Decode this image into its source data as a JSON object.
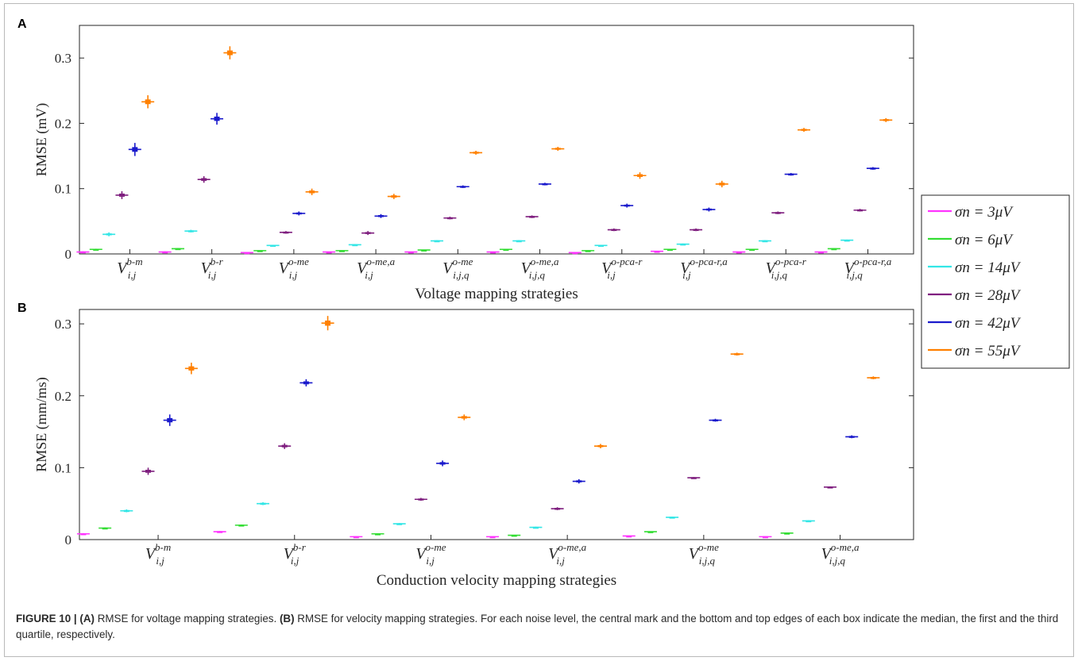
{
  "figure": {
    "caption_lead": "FIGURE 10 | ",
    "caption_a_tag": "(A)",
    "caption_a_text": " RMSE for voltage mapping strategies. ",
    "caption_b_tag": "(B)",
    "caption_b_text": " RMSE for velocity mapping strategies. For each noise level, the central mark and the bottom and top edges of each box indicate the median, the first and the third quartile, respectively."
  },
  "legend": {
    "entries": [
      {
        "label": "σn = 3μV",
        "color": "#ff33ff"
      },
      {
        "label": "σn = 6μV",
        "color": "#33dd33"
      },
      {
        "label": "σn = 14μV",
        "color": "#33e6e6"
      },
      {
        "label": "σn = 28μV",
        "color": "#7f1f7f"
      },
      {
        "label": "σn = 42μV",
        "color": "#1a1acc"
      },
      {
        "label": "σn = 55μV",
        "color": "#ff8000"
      }
    ]
  },
  "chart_data": [
    {
      "panel": "A",
      "type": "box",
      "xlabel": "Voltage mapping strategies",
      "ylabel": "RMSE (mV)",
      "ylim": [
        0,
        0.35
      ],
      "yticks": [
        "0",
        "0.1",
        "0.2",
        "0.3"
      ],
      "noise_levels": [
        "σn = 3μV",
        "σn = 6μV",
        "σn = 14μV",
        "σn = 28μV",
        "σn = 42μV",
        "σn = 55μV"
      ],
      "categories": [
        {
          "base": "V",
          "sup": "b-m",
          "sub": "i,j"
        },
        {
          "base": "V",
          "sup": "b-r",
          "sub": "i,j"
        },
        {
          "base": "V",
          "sup": "o-me",
          "sub": "i,j"
        },
        {
          "base": "V",
          "sup": "o-me,a",
          "sub": "i,j"
        },
        {
          "base": "V",
          "sup": "o-me",
          "sub": "i,j,q"
        },
        {
          "base": "V",
          "sup": "o-me,a",
          "sub": "i,j,q"
        },
        {
          "base": "V",
          "sup": "o-pca-r",
          "sub": "i,j"
        },
        {
          "base": "V",
          "sup": "o-pca-r,a",
          "sub": "i,j"
        },
        {
          "base": "V",
          "sup": "o-pca-r",
          "sub": "i,j,q"
        },
        {
          "base": "V",
          "sup": "o-pca-r,a",
          "sub": "i,j,q"
        }
      ],
      "series_values": [
        [
          [
            0.003,
            0.007,
            0.03,
            0.09,
            0.16,
            0.233
          ]
        ],
        [
          [
            0.003,
            0.008,
            0.035,
            0.114,
            0.207,
            0.308
          ]
        ],
        [
          [
            0.002,
            0.005,
            0.013,
            0.033,
            0.062,
            0.095
          ]
        ],
        [
          [
            0.003,
            0.005,
            0.014,
            0.032,
            0.058,
            0.088
          ]
        ],
        [
          [
            0.003,
            0.006,
            0.02,
            0.055,
            0.103,
            0.155
          ]
        ],
        [
          [
            0.003,
            0.007,
            0.02,
            0.057,
            0.107,
            0.161
          ]
        ],
        [
          [
            0.002,
            0.005,
            0.013,
            0.037,
            0.074,
            0.12
          ]
        ],
        [
          [
            0.004,
            0.007,
            0.015,
            0.037,
            0.068,
            0.107
          ]
        ],
        [
          [
            0.003,
            0.007,
            0.02,
            0.063,
            0.122,
            0.19
          ]
        ],
        [
          [
            0.003,
            0.008,
            0.021,
            0.067,
            0.131,
            0.205
          ]
        ]
      ],
      "spreads": [
        [
          [
            0.001,
            0.001,
            0.003,
            0.006,
            0.01,
            0.01
          ]
        ],
        [
          [
            0.001,
            0.001,
            0.002,
            0.005,
            0.009,
            0.01
          ]
        ],
        [
          [
            0.0005,
            0.0005,
            0.001,
            0.002,
            0.003,
            0.005
          ]
        ],
        [
          [
            0.0005,
            0.0005,
            0.001,
            0.003,
            0.003,
            0.004
          ]
        ],
        [
          [
            0.0005,
            0.0005,
            0.001,
            0.002,
            0.002,
            0.003
          ]
        ],
        [
          [
            0.0005,
            0.0005,
            0.001,
            0.002,
            0.002,
            0.003
          ]
        ],
        [
          [
            0.0005,
            0.0005,
            0.001,
            0.002,
            0.003,
            0.005
          ]
        ],
        [
          [
            0.0005,
            0.0005,
            0.001,
            0.002,
            0.003,
            0.005
          ]
        ],
        [
          [
            0.0005,
            0.0005,
            0.001,
            0.002,
            0.002,
            0.003
          ]
        ],
        [
          [
            0.0005,
            0.0005,
            0.001,
            0.002,
            0.002,
            0.003
          ]
        ]
      ]
    },
    {
      "panel": "B",
      "type": "box",
      "xlabel": "Conduction velocity mapping strategies",
      "ylabel": "RMSE (mm/ms)",
      "ylim": [
        0,
        0.32
      ],
      "yticks": [
        "0",
        "0.1",
        "0.2",
        "0.3"
      ],
      "noise_levels": [
        "σn = 3μV",
        "σn = 6μV",
        "σn = 14μV",
        "σn = 28μV",
        "σn = 42μV",
        "σn = 55μV"
      ],
      "categories": [
        {
          "base": "V",
          "sup": "b-m",
          "sub": "i,j"
        },
        {
          "base": "V",
          "sup": "b-r",
          "sub": "i,j"
        },
        {
          "base": "V",
          "sup": "o-me",
          "sub": "i,j"
        },
        {
          "base": "V",
          "sup": "o-me,a",
          "sub": "i,j"
        },
        {
          "base": "V",
          "sup": "o-me",
          "sub": "i,j,q"
        },
        {
          "base": "V",
          "sup": "o-me,a",
          "sub": "i,j,q"
        }
      ],
      "series_values": [
        [
          [
            0.008,
            0.016,
            0.04,
            0.095,
            0.166,
            0.238
          ]
        ],
        [
          [
            0.011,
            0.02,
            0.05,
            0.13,
            0.218,
            0.301
          ]
        ],
        [
          [
            0.004,
            0.008,
            0.022,
            0.056,
            0.106,
            0.17
          ]
        ],
        [
          [
            0.004,
            0.006,
            0.017,
            0.043,
            0.081,
            0.13
          ]
        ],
        [
          [
            0.005,
            0.011,
            0.031,
            0.086,
            0.166,
            0.258
          ]
        ],
        [
          [
            0.004,
            0.009,
            0.026,
            0.073,
            0.143,
            0.225
          ]
        ]
      ],
      "spreads": [
        [
          [
            0.001,
            0.001,
            0.002,
            0.005,
            0.008,
            0.008
          ]
        ],
        [
          [
            0.001,
            0.001,
            0.002,
            0.004,
            0.005,
            0.01
          ]
        ],
        [
          [
            0.0005,
            0.0005,
            0.001,
            0.002,
            0.004,
            0.004
          ]
        ],
        [
          [
            0.0005,
            0.0005,
            0.001,
            0.002,
            0.003,
            0.003
          ]
        ],
        [
          [
            0.0005,
            0.0005,
            0.001,
            0.001,
            0.002,
            0.002
          ]
        ],
        [
          [
            0.0005,
            0.0005,
            0.001,
            0.001,
            0.002,
            0.002
          ]
        ]
      ]
    }
  ]
}
